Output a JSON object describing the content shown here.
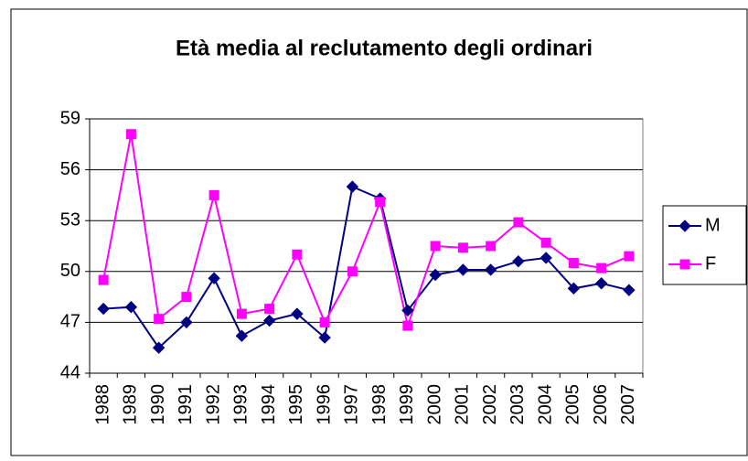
{
  "chart_data": {
    "type": "line",
    "title": "Età media al reclutamento degli ordinari",
    "categories": [
      "1988",
      "1989",
      "1990",
      "1991",
      "1992",
      "1993",
      "1994",
      "1995",
      "1996",
      "1997",
      "1998",
      "1999",
      "2000",
      "2001",
      "2002",
      "2003",
      "2004",
      "2005",
      "2006",
      "2007"
    ],
    "series": [
      {
        "name": "M",
        "color": "#000080",
        "marker": "diamond",
        "values": [
          47.8,
          47.9,
          45.5,
          47.0,
          49.6,
          46.2,
          47.1,
          47.5,
          46.1,
          55.0,
          54.3,
          47.7,
          49.8,
          50.1,
          50.1,
          50.6,
          50.8,
          49.0,
          49.3,
          48.9
        ]
      },
      {
        "name": "F",
        "color": "#ff00ff",
        "marker": "square",
        "values": [
          49.5,
          58.1,
          47.2,
          48.5,
          54.5,
          47.5,
          47.8,
          51.0,
          47.0,
          50.0,
          54.1,
          46.8,
          51.5,
          51.4,
          51.5,
          52.9,
          51.7,
          50.5,
          50.2,
          50.9
        ]
      }
    ],
    "ylim": [
      44,
      59
    ],
    "yticks": [
      44,
      47,
      50,
      53,
      56,
      59
    ],
    "grid": true,
    "legend": "right"
  }
}
